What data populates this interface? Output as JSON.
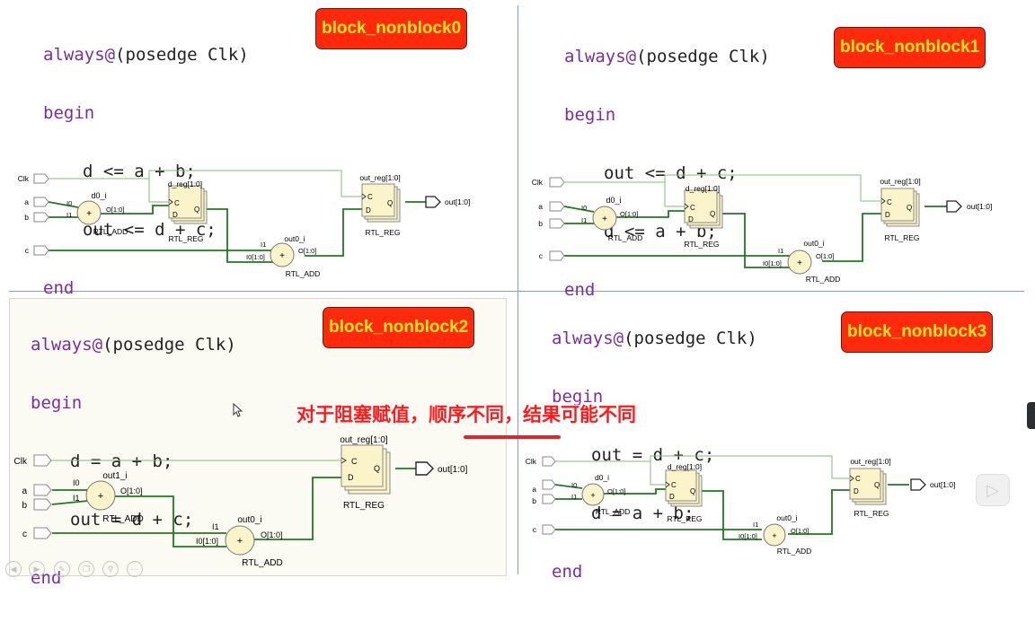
{
  "panels": [
    {
      "badge": "block_nonblock0",
      "code": {
        "l1_kw": "always@",
        "l1_rest": "(posedge Clk)",
        "l2": "begin",
        "l3": "d <= a + b;",
        "l4": "out <= d + c;",
        "l5": "end"
      },
      "schematic": {
        "clk": "Clk",
        "a": "a",
        "b": "b",
        "c": "c",
        "add1": {
          "inst": "d0_i",
          "i0": "I0",
          "i1": "I1",
          "o": "O[1:0]",
          "type": "RTL_ADD",
          "sym": "+"
        },
        "reg1": {
          "inst": "d_reg[1:0]",
          "c": "C",
          "d": "D",
          "q": "Q",
          "type": "RTL_REG"
        },
        "add2": {
          "inst": "out0_i",
          "i0": "I0[1:0]",
          "i1": "I1",
          "o": "O[1:0]",
          "type": "RTL_ADD",
          "sym": "+"
        },
        "reg2": {
          "inst": "out_reg[1:0]",
          "c": "C",
          "d": "D",
          "q": "Q",
          "type": "RTL_REG"
        },
        "out": "out[1:0]"
      }
    },
    {
      "badge": "block_nonblock1",
      "code": {
        "l1_kw": "always@",
        "l1_rest": "(posedge Clk)",
        "l2": "begin",
        "l3": "out <= d + c;",
        "l4": "d <= a + b;",
        "l5": "end"
      },
      "schematic": {
        "clk": "Clk",
        "a": "a",
        "b": "b",
        "c": "c",
        "add1": {
          "inst": "d0_i",
          "i0": "I0",
          "i1": "I1",
          "o": "O[1:0]",
          "type": "RTL_ADD",
          "sym": "+"
        },
        "reg1": {
          "inst": "d_reg[1:0]",
          "c": "C",
          "d": "D",
          "q": "Q",
          "type": "RTL_REG"
        },
        "add2": {
          "inst": "out0_i",
          "i0": "I0[1:0]",
          "i1": "I1",
          "o": "O[1:0]",
          "type": "RTL_ADD",
          "sym": "+"
        },
        "reg2": {
          "inst": "out_reg[1:0]",
          "c": "C",
          "d": "D",
          "q": "Q",
          "type": "RTL_REG"
        },
        "out": "out[1:0]"
      }
    },
    {
      "badge": "block_nonblock2",
      "code": {
        "l1_kw": "always@",
        "l1_rest": "(posedge Clk)",
        "l2": "begin",
        "l3": "d = a + b;",
        "l4": "out = d + c;",
        "l5": "end"
      },
      "schematic": {
        "clk": "Clk",
        "a": "a",
        "b": "b",
        "c": "c",
        "add1": {
          "inst": "out1_i",
          "i0": "I0",
          "i1": "I1",
          "o": "O[1:0]",
          "type": "RTL_ADD",
          "sym": "+"
        },
        "add2": {
          "inst": "out0_i",
          "i0": "I0[1:0]",
          "i1": "I1",
          "o": "O[1:0]",
          "type": "RTL_ADD",
          "sym": "+"
        },
        "reg2": {
          "inst": "out_reg[1:0]",
          "c": "C",
          "d": "D",
          "q": "Q",
          "type": "RTL_REG"
        },
        "out": "out[1:0]"
      }
    },
    {
      "badge": "block_nonblock3",
      "code": {
        "l1_kw": "always@",
        "l1_rest": "(posedge Clk)",
        "l2": "begin",
        "l3": "out = d + c;",
        "l4": "d = a + b;",
        "l5": "end"
      },
      "schematic": {
        "clk": "Clk",
        "a": "a",
        "b": "b",
        "c": "c",
        "add1": {
          "inst": "d0_i",
          "i0": "I0",
          "i1": "I1",
          "o": "O[1:0]",
          "type": "RTL_ADD",
          "sym": "+"
        },
        "reg1": {
          "inst": "d_reg[1:0]",
          "c": "C",
          "d": "D",
          "q": "Q",
          "type": "RTL_REG"
        },
        "add2": {
          "inst": "out0_i",
          "i0": "I0[1:0]",
          "i1": "I1",
          "o": "O[1:0]",
          "type": "RTL_ADD",
          "sym": "+"
        },
        "reg2": {
          "inst": "out_reg[1:0]",
          "c": "C",
          "d": "D",
          "q": "Q",
          "type": "RTL_REG"
        },
        "out": "out[1:0]"
      }
    }
  ],
  "subtitle": "对于阻塞赋值，顺序不同，结果可能不同",
  "colors": {
    "wire_clk": "#7fbf6f",
    "wire_data": "#1e7a1e",
    "badge_bg": "#ff2a0c",
    "badge_fg": "#ffe81a",
    "keyword": "#7a2da0",
    "subtitle": "#ff1919",
    "reg_fill": "#fbf3c9"
  },
  "player_controls": [
    "back-icon",
    "play-icon",
    "pen-icon",
    "copy-icon",
    "search-icon",
    "more-icon"
  ],
  "side_button_icon": "play-icon"
}
